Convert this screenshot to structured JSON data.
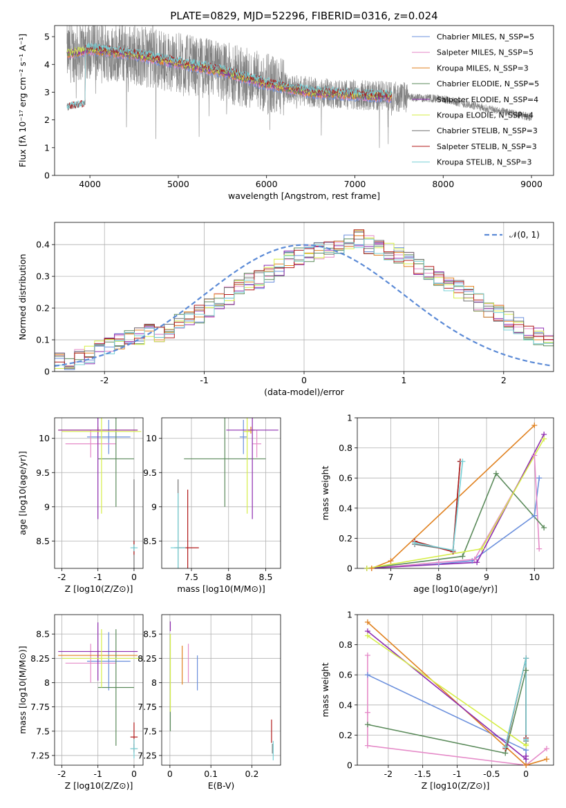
{
  "figure_title": "PLATE=0829, MJD=52296, FIBERID=0316, z=0.024",
  "colors": {
    "chabrier_miles": "#6a8fdc",
    "salpeter_miles": "#e58ac8",
    "kroupa_miles": "#e0811f",
    "chabrier_elodie": "#5a8a5a",
    "salpeter_elodie": "#8e2bb0",
    "kroupa_elodie": "#d6ee47",
    "chabrier_stelib": "#707070",
    "salpeter_stelib": "#b01818",
    "kroupa_stelib": "#74d0d6",
    "data": "#808080",
    "normal": "#5b8ad6"
  },
  "chart_data": [
    {
      "id": "spectrum",
      "type": "line",
      "title": "PLATE=0829, MJD=52296, FIBERID=0316, z=0.024",
      "xlabel": "wavelength [Angstrom, rest frame]",
      "ylabel": "Flux [fλ 10⁻¹⁷ erg cm⁻² s⁻¹ A⁻¹]",
      "xlim": [
        3600,
        9250
      ],
      "ylim": [
        0,
        5.4
      ],
      "xticks": [
        4000,
        5000,
        6000,
        7000,
        8000,
        9000
      ],
      "yticks": [
        0,
        1,
        2,
        3,
        4,
        5
      ],
      "legend_position": "top-right",
      "grid": false,
      "data_range": [
        3740,
        9000
      ],
      "model_range": [
        3740,
        7420
      ],
      "continuum": [
        [
          3740,
          4.4
        ],
        [
          4000,
          4.55
        ],
        [
          4500,
          4.35
        ],
        [
          5000,
          4.05
        ],
        [
          5500,
          3.75
        ],
        [
          6000,
          3.3
        ],
        [
          6500,
          3.0
        ],
        [
          7000,
          2.9
        ],
        [
          7400,
          2.85
        ],
        [
          8000,
          2.75
        ],
        [
          8500,
          2.4
        ],
        [
          9000,
          2.1
        ]
      ],
      "series": [
        {
          "name": "Chabrier MILES, N_SSP=5",
          "color_key": "chabrier_miles"
        },
        {
          "name": "Salpeter MILES, N_SSP=5",
          "color_key": "salpeter_miles"
        },
        {
          "name": "Kroupa MILES, N_SSP=3",
          "color_key": "kroupa_miles"
        },
        {
          "name": "Chabrier ELODIE, N_SSP=5",
          "color_key": "chabrier_elodie"
        },
        {
          "name": "Salpeter ELODIE, N_SSP=4",
          "color_key": "salpeter_elodie"
        },
        {
          "name": "Kroupa ELODIE, N_SSP=4",
          "color_key": "kroupa_elodie"
        },
        {
          "name": "Chabrier STELIB, N_SSP=3",
          "color_key": "chabrier_stelib"
        },
        {
          "name": "Salpeter STELIB, N_SSP=3",
          "color_key": "salpeter_stelib"
        },
        {
          "name": "Kroupa STELIB, N_SSP=3",
          "color_key": "kroupa_stelib"
        }
      ]
    },
    {
      "id": "residuals",
      "type": "line",
      "xlabel": "(data-model)/error",
      "ylabel": "Normed distribution",
      "xlim": [
        -2.5,
        2.5
      ],
      "ylim": [
        0,
        0.47
      ],
      "xticks": [
        -2,
        -1,
        0,
        1,
        2
      ],
      "yticks": [
        0.0,
        0.1,
        0.2,
        0.3,
        0.4
      ],
      "grid": true,
      "legend_position": "top-right",
      "legend": "𝒩(0, 1)",
      "bin_width": 0.1,
      "histogram_envelope": [
        0.03,
        0.035,
        0.04,
        0.05,
        0.07,
        0.08,
        0.09,
        0.1,
        0.11,
        0.12,
        0.12,
        0.13,
        0.16,
        0.17,
        0.18,
        0.2,
        0.22,
        0.24,
        0.26,
        0.28,
        0.29,
        0.31,
        0.33,
        0.35,
        0.36,
        0.37,
        0.38,
        0.39,
        0.4,
        0.41,
        0.42,
        0.4,
        0.39,
        0.38,
        0.37,
        0.35,
        0.33,
        0.32,
        0.3,
        0.28,
        0.26,
        0.24,
        0.22,
        0.2,
        0.18,
        0.16,
        0.14,
        0.12,
        0.11,
        0.1,
        0.09,
        0.08,
        0.07,
        0.06,
        0.05,
        0.05,
        0.05,
        0.04,
        0.04,
        0.035,
        0.03,
        0.03,
        0.03,
        0.03,
        0.03,
        0.03,
        0.03,
        0.03,
        0.03,
        0.03,
        0.03,
        0.03,
        0.03,
        0.03,
        0.03,
        0.03,
        0.03,
        0.03,
        0.03,
        0.03
      ],
      "normal_curve": {
        "mean": 0,
        "sigma": 1,
        "peak": 0.399
      }
    },
    {
      "id": "age_vs_Z",
      "type": "scatter",
      "xlabel": "Z [log10(Z/Z⊙)]",
      "ylabel": "age [log10(age/yr)]",
      "xlim": [
        -2.2,
        0.25
      ],
      "ylim": [
        8.1,
        10.3
      ],
      "xticks": [
        -2,
        -1,
        0
      ],
      "yticks": [
        8.5,
        9.0,
        9.5,
        10.0
      ],
      "grid": true,
      "points": [
        {
          "color_key": "chabrier_miles",
          "x": -0.7,
          "xerr": 0.6,
          "y": 10.02,
          "yerr": 0.25
        },
        {
          "color_key": "salpeter_miles",
          "x": -1.2,
          "xerr": 0.7,
          "y": 9.92,
          "yerr": 0.2
        },
        {
          "color_key": "kroupa_miles",
          "x": -1.0,
          "xerr": 1.1,
          "y": 10.12,
          "yerr": 0.05
        },
        {
          "color_key": "chabrier_elodie",
          "x": -0.5,
          "xerr": 0.5,
          "y": 9.7,
          "yerr": 0.7
        },
        {
          "color_key": "salpeter_elodie",
          "x": -1.0,
          "xerr": 1.1,
          "y": 10.12,
          "yerr": 1.3
        },
        {
          "color_key": "kroupa_elodie",
          "x": -0.9,
          "xerr": 1.1,
          "y": 10.1,
          "yerr": 1.2
        },
        {
          "color_key": "chabrier_stelib",
          "x": 0.0,
          "xerr": 0.02,
          "y": 8.4,
          "yerr": 1.0
        },
        {
          "color_key": "salpeter_stelib",
          "x": 0.0,
          "xerr": 0.02,
          "y": 8.4,
          "yerr": 0.1
        },
        {
          "color_key": "kroupa_stelib",
          "x": 0.0,
          "xerr": 0.1,
          "y": 8.4,
          "yerr": 0.05
        }
      ]
    },
    {
      "id": "age_vs_mass",
      "type": "scatter",
      "xlabel": "mass [log10(M/M⊙)]",
      "ylabel": "",
      "xlim": [
        7.1,
        8.7
      ],
      "ylim": [
        8.1,
        10.3
      ],
      "xticks": [
        7.5,
        8.0,
        8.5
      ],
      "yticks": [
        8.5,
        9.0,
        9.5,
        10.0
      ],
      "grid": true,
      "points": [
        {
          "color_key": "chabrier_miles",
          "x": 8.2,
          "xerr": 0.05,
          "y": 10.02,
          "yerr": 0.25
        },
        {
          "color_key": "salpeter_miles",
          "x": 8.38,
          "xerr": 0.06,
          "y": 9.92,
          "yerr": 0.2
        },
        {
          "color_key": "kroupa_miles",
          "x": 8.3,
          "xerr": 0.05,
          "y": 10.12,
          "yerr": 0.05
        },
        {
          "color_key": "chabrier_elodie",
          "x": 7.95,
          "xerr": 0.55,
          "y": 9.7,
          "yerr": 0.7
        },
        {
          "color_key": "salpeter_elodie",
          "x": 8.32,
          "xerr": 0.35,
          "y": 10.12,
          "yerr": 1.3
        },
        {
          "color_key": "kroupa_elodie",
          "x": 8.25,
          "xerr": 0.05,
          "y": 10.1,
          "yerr": 1.2
        },
        {
          "color_key": "chabrier_stelib",
          "x": 7.32,
          "xerr": 0.05,
          "y": 8.4,
          "yerr": 1.0
        },
        {
          "color_key": "salpeter_stelib",
          "x": 7.45,
          "xerr": 0.15,
          "y": 8.4,
          "yerr": 0.85
        },
        {
          "color_key": "kroupa_stelib",
          "x": 7.32,
          "xerr": 0.1,
          "y": 8.4,
          "yerr": 0.8
        }
      ]
    },
    {
      "id": "weight_vs_age",
      "type": "line",
      "xlabel": "age [log10(age/yr)]",
      "ylabel": "mass weight",
      "xlim": [
        6.3,
        10.4
      ],
      "ylim": [
        0,
        1.0
      ],
      "xticks": [
        7,
        8,
        9,
        10
      ],
      "yticks": [
        0.0,
        0.2,
        0.4,
        0.6,
        0.8,
        1.0
      ],
      "grid": true,
      "series": [
        {
          "color_key": "chabrier_miles",
          "x": [
            6.5,
            8.0,
            8.7,
            10.0,
            10.1
          ],
          "y": [
            0.0,
            0.03,
            0.05,
            0.35,
            0.6
          ]
        },
        {
          "color_key": "salpeter_miles",
          "x": [
            6.6,
            8.0,
            8.75,
            10.0,
            10.1
          ],
          "y": [
            0.0,
            0.04,
            0.06,
            0.75,
            0.13
          ]
        },
        {
          "color_key": "kroupa_miles",
          "x": [
            6.6,
            7.0,
            10.0
          ],
          "y": [
            0.0,
            0.05,
            0.95
          ]
        },
        {
          "color_key": "chabrier_elodie",
          "x": [
            6.5,
            8.5,
            9.2,
            10.2
          ],
          "y": [
            0.0,
            0.08,
            0.63,
            0.27
          ]
        },
        {
          "color_key": "salpeter_elodie",
          "x": [
            6.5,
            8.8,
            10.2
          ],
          "y": [
            0.0,
            0.04,
            0.89
          ]
        },
        {
          "color_key": "kroupa_elodie",
          "x": [
            6.5,
            8.9,
            10.2
          ],
          "y": [
            0.0,
            0.13,
            0.86
          ]
        },
        {
          "color_key": "chabrier_stelib",
          "x": [
            7.5,
            8.3,
            8.45
          ],
          "y": [
            0.16,
            0.12,
            0.71
          ]
        },
        {
          "color_key": "salpeter_stelib",
          "x": [
            7.5,
            8.3,
            8.45
          ],
          "y": [
            0.18,
            0.11,
            0.71
          ]
        },
        {
          "color_key": "kroupa_stelib",
          "x": [
            7.5,
            8.3,
            8.5
          ],
          "y": [
            0.17,
            0.12,
            0.71
          ]
        }
      ]
    },
    {
      "id": "mass_vs_Z",
      "type": "scatter",
      "xlabel": "Z [log10(Z/Z⊙)]",
      "ylabel": "mass [log10(M/M⊙)]",
      "xlim": [
        -2.2,
        0.25
      ],
      "ylim": [
        7.15,
        8.7
      ],
      "xticks": [
        -2,
        -1,
        0
      ],
      "yticks": [
        7.25,
        7.5,
        7.75,
        8.0,
        8.25,
        8.5
      ],
      "grid": true,
      "points": [
        {
          "color_key": "chabrier_miles",
          "x": -0.7,
          "xerr": 0.6,
          "y": 8.22,
          "yerr": 0.3
        },
        {
          "color_key": "salpeter_miles",
          "x": -1.2,
          "xerr": 0.7,
          "y": 8.2,
          "yerr": 0.2
        },
        {
          "color_key": "kroupa_miles",
          "x": -1.0,
          "xerr": 1.1,
          "y": 8.28,
          "yerr": 0.05
        },
        {
          "color_key": "chabrier_elodie",
          "x": -0.5,
          "xerr": 0.5,
          "y": 7.95,
          "yerr": 0.6
        },
        {
          "color_key": "salpeter_elodie",
          "x": -1.0,
          "xerr": 1.1,
          "y": 8.32,
          "yerr": 0.3
        },
        {
          "color_key": "kroupa_elodie",
          "x": -0.9,
          "xerr": 1.1,
          "y": 8.25,
          "yerr": 0.3
        },
        {
          "color_key": "chabrier_stelib",
          "x": 0.0,
          "xerr": 0.1,
          "y": 7.32,
          "yerr": 0.05
        },
        {
          "color_key": "salpeter_stelib",
          "x": 0.0,
          "xerr": 0.1,
          "y": 7.44,
          "yerr": 0.15
        },
        {
          "color_key": "kroupa_stelib",
          "x": 0.0,
          "xerr": 0.1,
          "y": 7.32,
          "yerr": 0.1
        }
      ]
    },
    {
      "id": "mass_vs_EBV",
      "type": "scatter",
      "xlabel": "E(B-V)",
      "ylabel": "",
      "xlim": [
        -0.02,
        0.27
      ],
      "ylim": [
        7.15,
        8.7
      ],
      "xticks": [
        0.0,
        0.1,
        0.2
      ],
      "yticks": [
        7.25,
        7.5,
        7.75,
        8.0,
        8.25,
        8.5
      ],
      "grid": true,
      "points": [
        {
          "color_key": "chabrier_miles",
          "x": 0.067,
          "y": 8.1,
          "yerr": 0.18
        },
        {
          "color_key": "salpeter_miles",
          "x": 0.045,
          "y": 8.2,
          "yerr": 0.2
        },
        {
          "color_key": "kroupa_miles",
          "x": 0.03,
          "y": 8.18,
          "yerr": 0.2
        },
        {
          "color_key": "chabrier_elodie",
          "x": 0.001,
          "y": 8.0,
          "yerr": 0.5
        },
        {
          "color_key": "salpeter_elodie",
          "x": 0.001,
          "y": 8.58,
          "yerr": 0.05
        },
        {
          "color_key": "kroupa_elodie",
          "x": 0.001,
          "y": 8.1,
          "yerr": 0.4
        },
        {
          "color_key": "chabrier_stelib",
          "x": 0.25,
          "y": 7.32,
          "yerr": 0.05
        },
        {
          "color_key": "salpeter_stelib",
          "x": 0.248,
          "y": 7.5,
          "yerr": 0.12
        },
        {
          "color_key": "kroupa_stelib",
          "x": 0.252,
          "y": 7.3,
          "yerr": 0.1
        }
      ]
    },
    {
      "id": "weight_vs_Z",
      "type": "line",
      "xlabel": "Z [log10(Z/Z⊙)]",
      "ylabel": "mass weight",
      "xlim": [
        -2.45,
        0.4
      ],
      "ylim": [
        0,
        1.0
      ],
      "xticks": [
        -2.0,
        -1.5,
        -1.0,
        -0.5,
        0.0
      ],
      "yticks": [
        0.0,
        0.2,
        0.4,
        0.6,
        0.8,
        1.0
      ],
      "grid": true,
      "series": [
        {
          "color_key": "chabrier_miles",
          "x": [
            -2.3,
            0.0,
            0.0
          ],
          "y": [
            0.6,
            0.1,
            0.0
          ]
        },
        {
          "color_key": "salpeter_miles",
          "x": [
            -2.3,
            -2.3,
            -2.3,
            0.0,
            0.3
          ],
          "y": [
            0.73,
            0.35,
            0.13,
            0.0,
            0.11
          ]
        },
        {
          "color_key": "kroupa_miles",
          "x": [
            -2.3,
            0.0,
            0.3
          ],
          "y": [
            0.95,
            0.0,
            0.04
          ]
        },
        {
          "color_key": "chabrier_elodie",
          "x": [
            -2.3,
            -0.3,
            0.0
          ],
          "y": [
            0.27,
            0.08,
            0.63
          ]
        },
        {
          "color_key": "salpeter_elodie",
          "x": [
            -2.3,
            0.0,
            0.0
          ],
          "y": [
            0.89,
            0.04,
            0.06
          ]
        },
        {
          "color_key": "kroupa_elodie",
          "x": [
            -2.3,
            0.0,
            0.0
          ],
          "y": [
            0.86,
            0.13,
            0.14
          ]
        },
        {
          "color_key": "chabrier_stelib",
          "x": [
            -0.3,
            0.0,
            0.0
          ],
          "y": [
            0.12,
            0.71,
            0.16
          ]
        },
        {
          "color_key": "salpeter_stelib",
          "x": [
            -0.3,
            0.0,
            0.0
          ],
          "y": [
            0.11,
            0.71,
            0.18
          ]
        },
        {
          "color_key": "kroupa_stelib",
          "x": [
            -0.3,
            0.0,
            0.0
          ],
          "y": [
            0.12,
            0.71,
            0.17
          ]
        }
      ]
    }
  ]
}
